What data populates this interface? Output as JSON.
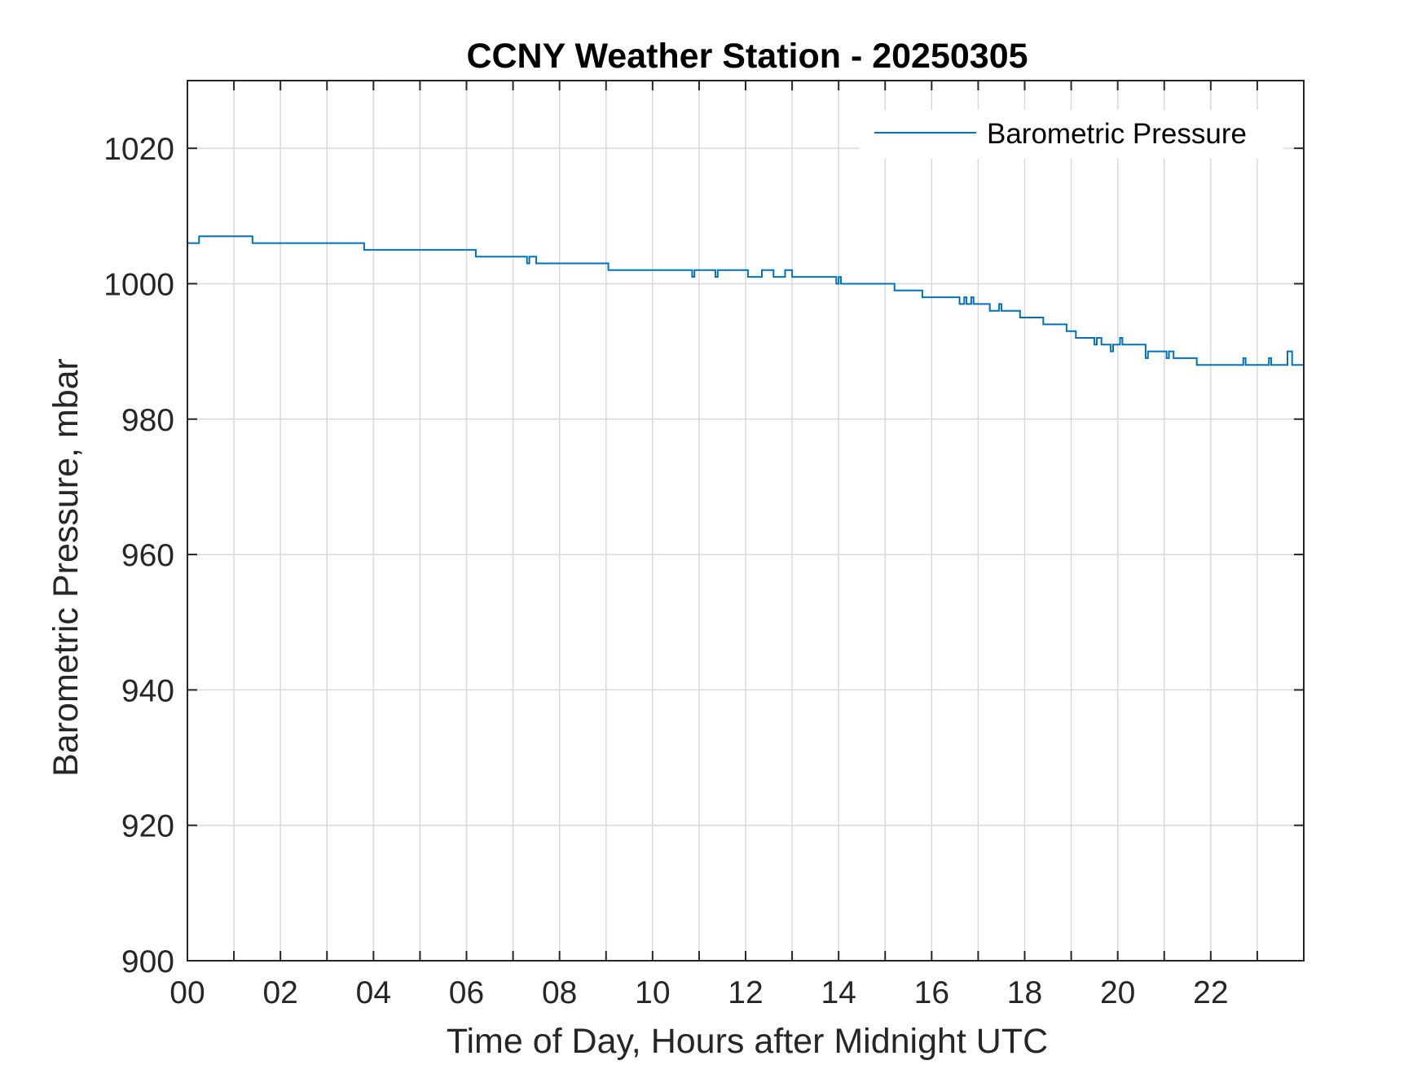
{
  "chart_data": {
    "type": "line",
    "title": "CCNY Weather Station - 20250305",
    "xlabel": "Time of Day, Hours after Midnight UTC",
    "ylabel": "Barometric Pressure, mbar",
    "xlim": [
      0,
      24
    ],
    "ylim": [
      900,
      1030
    ],
    "x_ticks": [
      0,
      2,
      4,
      6,
      8,
      10,
      12,
      14,
      16,
      18,
      20,
      22
    ],
    "x_tick_labels": [
      "00",
      "02",
      "04",
      "06",
      "08",
      "10",
      "12",
      "14",
      "16",
      "18",
      "20",
      "22"
    ],
    "y_ticks": [
      900,
      920,
      940,
      960,
      980,
      1000,
      1020
    ],
    "y_tick_labels": [
      "900",
      "920",
      "940",
      "960",
      "980",
      "1000",
      "1020"
    ],
    "grid": true,
    "legend_position": "top-right",
    "series": [
      {
        "name": "Barometric Pressure",
        "color": "#0072BD",
        "x": [
          0,
          0.25,
          0.25,
          1.4,
          1.4,
          3.8,
          3.8,
          6.2,
          6.2,
          7.3,
          7.3,
          7.35,
          7.35,
          7.5,
          7.5,
          7.55,
          7.55,
          9.05,
          9.05,
          10.85,
          10.85,
          10.9,
          10.9,
          11.35,
          11.35,
          11.4,
          11.4,
          12.05,
          12.05,
          12.35,
          12.35,
          12.6,
          12.6,
          12.85,
          12.85,
          13.0,
          13.0,
          13.95,
          13.95,
          14.0,
          14.0,
          14.05,
          14.05,
          15.2,
          15.2,
          15.8,
          15.8,
          16.6,
          16.6,
          16.7,
          16.7,
          16.75,
          16.75,
          16.85,
          16.85,
          16.9,
          16.9,
          17.0,
          17.0,
          17.25,
          17.25,
          17.45,
          17.45,
          17.5,
          17.5,
          17.9,
          17.9,
          18.4,
          18.4,
          18.9,
          18.9,
          19.1,
          19.1,
          19.5,
          19.5,
          19.55,
          19.55,
          19.65,
          19.65,
          19.7,
          19.7,
          19.85,
          19.85,
          19.9,
          19.9,
          20.05,
          20.05,
          20.1,
          20.1,
          20.35,
          20.35,
          20.6,
          20.6,
          20.65,
          20.65,
          20.75,
          20.75,
          21.05,
          21.05,
          21.1,
          21.1,
          21.2,
          21.2,
          21.35,
          21.35,
          21.7,
          21.7,
          22.7,
          22.7,
          22.75,
          22.75,
          23.25,
          23.25,
          23.3,
          23.3,
          23.65,
          23.65,
          23.75,
          23.75,
          24.0
        ],
        "y": [
          1006,
          1006,
          1007,
          1007,
          1006,
          1006,
          1005,
          1005,
          1004,
          1004,
          1003,
          1003,
          1004,
          1004,
          1003,
          1003,
          1003,
          1003,
          1002,
          1002,
          1001,
          1001,
          1002,
          1002,
          1001,
          1001,
          1002,
          1002,
          1001,
          1001,
          1002,
          1002,
          1001,
          1001,
          1002,
          1002,
          1001,
          1001,
          1000,
          1000,
          1001,
          1001,
          1000,
          1000,
          999,
          999,
          998,
          998,
          997,
          997,
          998,
          998,
          997,
          997,
          998,
          998,
          997,
          997,
          997,
          997,
          996,
          996,
          997,
          997,
          996,
          996,
          995,
          995,
          994,
          994,
          993,
          993,
          992,
          992,
          991,
          991,
          992,
          992,
          991,
          991,
          991,
          991,
          990,
          990,
          991,
          991,
          992,
          992,
          991,
          991,
          991,
          991,
          989,
          989,
          990,
          990,
          990,
          990,
          989,
          989,
          990,
          990,
          989,
          989,
          989,
          989,
          988,
          988,
          989,
          989,
          988,
          988,
          989,
          989,
          988,
          988,
          990,
          990,
          988,
          988
        ]
      }
    ]
  }
}
